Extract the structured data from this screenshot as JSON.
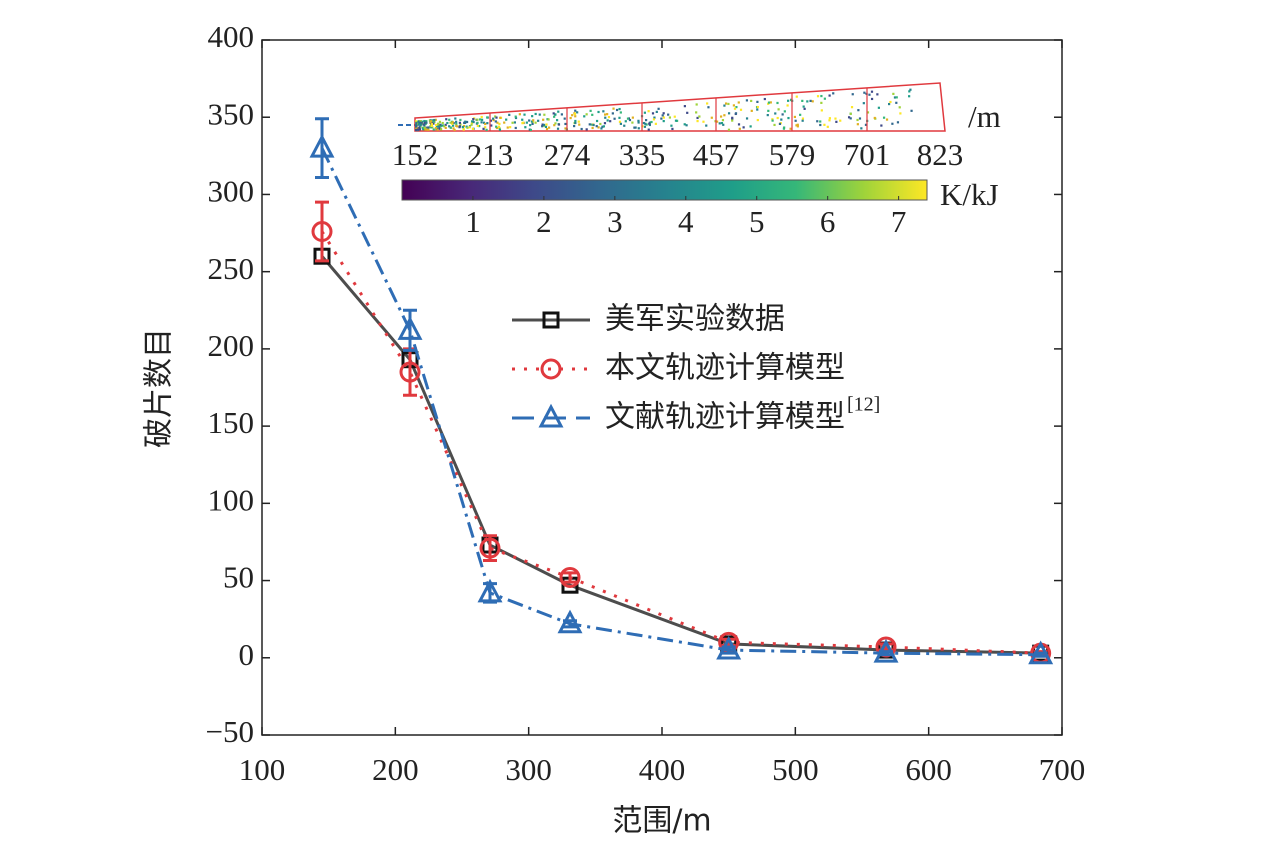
{
  "chart_data": {
    "type": "line",
    "xlabel": "范围/m",
    "ylabel": "破片数目",
    "xlim": [
      100,
      700
    ],
    "xticks": [
      100,
      200,
      300,
      400,
      500,
      600,
      700
    ],
    "ylim": [
      -50,
      400
    ],
    "yticks": [
      {
        "value": -50,
        "label": "−50"
      },
      0,
      50,
      100,
      150,
      200,
      250,
      300,
      350,
      400
    ],
    "series": [
      {
        "name": "美军实验数据",
        "color": "#4d4d4d",
        "marker": "square",
        "dash": "solid",
        "x": [
          145,
          211,
          271,
          331,
          450,
          568,
          684
        ],
        "values": [
          260,
          193,
          73,
          47,
          9,
          5,
          3
        ]
      },
      {
        "name": "本文轨迹计算模型",
        "color": "#e0393e",
        "marker": "circle",
        "dash": "dotted",
        "x": [
          145,
          211,
          271,
          331,
          450,
          568,
          684
        ],
        "values": [
          276,
          185,
          71,
          52,
          10,
          7,
          3
        ],
        "errors": [
          19,
          15,
          8,
          3,
          2,
          2,
          1
        ]
      },
      {
        "name": "文献轨迹计算模型",
        "name_note": "[12]",
        "color": "#2f6db5",
        "marker": "triangle",
        "dash": "dashdot",
        "x": [
          145,
          211,
          271,
          331,
          450,
          568,
          684
        ],
        "values": [
          330,
          212,
          42,
          22,
          5,
          3,
          2
        ],
        "errors": [
          19,
          13,
          6,
          2,
          2,
          1,
          1
        ]
      }
    ],
    "inset": {
      "zone_labels": [
        "152",
        "213",
        "274",
        "335",
        "457",
        "579",
        "701",
        "823"
      ],
      "zone_unit": "/m",
      "colorbar_lim": [
        0,
        7.4
      ],
      "colorbar_ticks": [
        1,
        2,
        3,
        4,
        5,
        6,
        7
      ],
      "colorbar_label": "K/kJ"
    }
  }
}
